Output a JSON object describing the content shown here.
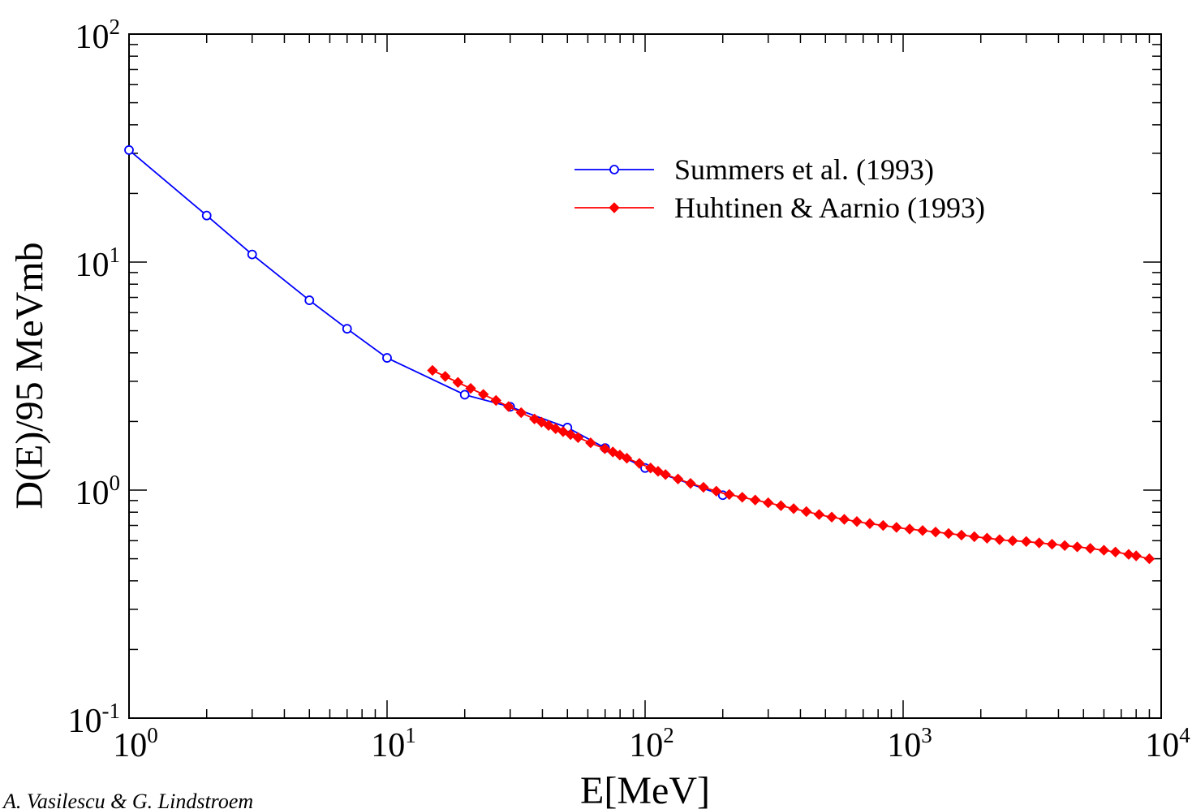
{
  "chart_data": {
    "type": "line",
    "title": "",
    "xlabel": "E[MeV]",
    "ylabel": "D(E)/95 MeVmb",
    "xscale": "log",
    "yscale": "log",
    "xlim": [
      1,
      10000
    ],
    "ylim": [
      0.1,
      100
    ],
    "x_ticks": [
      {
        "base": "10",
        "exp": "0"
      },
      {
        "base": "10",
        "exp": "1"
      },
      {
        "base": "10",
        "exp": "2"
      },
      {
        "base": "10",
        "exp": "3"
      },
      {
        "base": "10",
        "exp": "4"
      }
    ],
    "y_ticks": [
      {
        "base": "10",
        "exp": "-1"
      },
      {
        "base": "10",
        "exp": "0"
      },
      {
        "base": "10",
        "exp": "1"
      },
      {
        "base": "10",
        "exp": "2"
      }
    ],
    "grid": false,
    "legend_position": "top-right",
    "series": [
      {
        "name": "Summers et al. (1993)",
        "color": "#0000ff",
        "marker": "open-circle",
        "x": [
          1,
          2,
          3,
          5,
          7,
          10,
          20,
          30,
          50,
          70,
          100,
          200
        ],
        "y": [
          31,
          16,
          10.8,
          6.8,
          5.1,
          3.8,
          2.62,
          2.32,
          1.88,
          1.53,
          1.25,
          0.95
        ]
      },
      {
        "name": "Huhtinen & Aarnio (1993)",
        "color": "#ff0000",
        "marker": "filled-diamond",
        "x": [
          15,
          25,
          35,
          45,
          55,
          65,
          75,
          85,
          95,
          105,
          120,
          150,
          200,
          300,
          500,
          700,
          1000,
          1500,
          2000,
          2500,
          3000,
          4000,
          5000,
          6000,
          7000,
          8000,
          9000
        ],
        "y": [
          3.35,
          2.55,
          2.12,
          1.86,
          1.7,
          1.57,
          1.47,
          1.38,
          1.31,
          1.25,
          1.17,
          1.07,
          0.97,
          0.88,
          0.77,
          0.72,
          0.68,
          0.645,
          0.62,
          0.602,
          0.595,
          0.575,
          0.56,
          0.545,
          0.53,
          0.515,
          0.5
        ]
      }
    ]
  },
  "credit": "A. Vasilescu & G. Lindstroem"
}
